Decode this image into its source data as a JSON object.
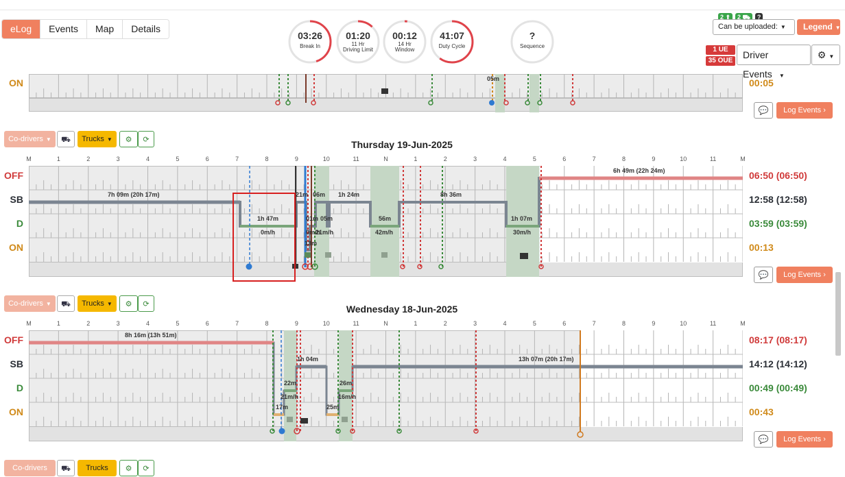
{
  "nav": {
    "tabs": [
      "eLog",
      "Events",
      "Map",
      "Details"
    ]
  },
  "gauges": [
    {
      "value": "03:26",
      "label1": "Break In",
      "label2": "",
      "fraction": 0.45
    },
    {
      "value": "01:20",
      "label1": "11 Hr",
      "label2": "Driving Limit",
      "fraction": 0.12
    },
    {
      "value": "00:12",
      "label1": "14 Hr",
      "label2": "Window",
      "fraction": 0.02
    },
    {
      "value": "41:07",
      "label1": "Duty Cycle",
      "label2": "",
      "fraction": 0.6
    },
    {
      "value": "?",
      "label1": "Sequence",
      "label2": "",
      "fraction": 0
    }
  ],
  "header_right": {
    "badge_a": "2 ⬆",
    "badge_b": "2 ⛟",
    "badge_c": "?",
    "upload_label": "Can be uploaded:",
    "legend_label": "Legend",
    "ue_label": "1 UE",
    "oue_label": "35 OUE",
    "driver_events": "Driver Events"
  },
  "row_labels": {
    "off": "OFF",
    "sb": "SB",
    "d": "D",
    "on": "ON"
  },
  "toolbar": {
    "codrivers": "Co-drivers",
    "trucks": "Trucks",
    "log_events": "Log Events"
  },
  "hours": [
    "M",
    "1",
    "2",
    "3",
    "4",
    "5",
    "6",
    "7",
    "8",
    "9",
    "10",
    "11",
    "N",
    "1",
    "2",
    "3",
    "4",
    "5",
    "6",
    "7",
    "8",
    "9",
    "10",
    "11",
    "M"
  ],
  "prev_day": {
    "on_total": "00:05",
    "seg_label": "05m"
  },
  "thursday": {
    "title": "Thursday 19-Jun-2025",
    "totals": {
      "off": "06:50 (06:50)",
      "sb": "12:58 (12:58)",
      "d": "03:59 (03:59)",
      "on": "00:13"
    },
    "labels": {
      "off1": "6h 49m (22h 24m)",
      "sb1": "7h 09m (20h 17m)",
      "sb2": "21m",
      "sb3": "06m",
      "sb4": "1h 24m",
      "sb5": "8h 36m",
      "d1": "1h 47m",
      "d1s": "0m/h",
      "d2": "01m",
      "d3": "05m",
      "d3s": "21m/h",
      "d2s": "0m/h",
      "d4": "56m",
      "d4s": "42m/h",
      "d5": "1h 07m",
      "d5s": "30m/h",
      "on1": "13m"
    }
  },
  "wednesday": {
    "title": "Wednesday 18-Jun-2025",
    "totals": {
      "off": "08:17 (08:17)",
      "sb": "14:12 (14:12)",
      "d": "00:49 (00:49)",
      "on": "00:43"
    },
    "labels": {
      "off1": "8h 16m (13h 51m)",
      "sb1": "1h 04m",
      "sb2": "13h 07m (20h 17m)",
      "d1": "22m",
      "d1s": "21m/h",
      "d2": "26m",
      "d2s": "16m/h",
      "on1": "17m",
      "on2": "25m"
    }
  },
  "next_block": {
    "codrivers": "Co-drivers",
    "trucks": "Trucks"
  }
}
